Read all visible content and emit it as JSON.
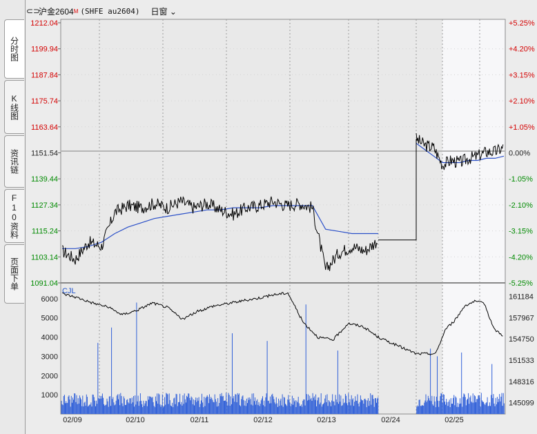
{
  "sidebar": {
    "tabs": [
      "分时图",
      "K线图",
      "资讯链",
      "F10资料",
      "页面下单"
    ]
  },
  "header": {
    "link_icon": "link-icon",
    "instrument": "沪金2604",
    "marker": "M",
    "code": "(SHFE au2604)",
    "window_label": "日窗"
  },
  "chart_data": [
    {
      "type": "line",
      "title": "",
      "prev_close": 1151.54,
      "y_ticks": [
        "1212.04",
        "1199.94",
        "1187.84",
        "1175.74",
        "1163.64",
        "1151.54",
        "1139.44",
        "1127.34",
        "1115.24",
        "1103.14",
        "1091.04"
      ],
      "pct_ticks": [
        "+5.25%",
        "+4.20%",
        "+3.15%",
        "+2.10%",
        "+1.05%",
        "0.00%",
        "-1.05%",
        "-2.10%",
        "-3.15%",
        "-4.20%",
        "-5.25%"
      ],
      "ylim": [
        1091.04,
        1212.04
      ],
      "x_labels": [
        "02/09",
        "02/10",
        "02/11",
        "02/12",
        "02/13",
        "02/24",
        "02/25"
      ],
      "series": [
        {
          "values": [
            1106,
            1102,
            1110,
            1108,
            1124,
            1127,
            1126,
            1128,
            1126,
            1129,
            1126,
            1128,
            1125,
            1123,
            1126,
            1127,
            1129,
            1127,
            1128,
            1126,
            1097,
            1105,
            1108,
            1106,
            1111,
            1158,
            1155,
            1154,
            1146,
            1148,
            1147,
            1149,
            1150,
            1152,
            1152,
            1154
          ]
        },
        {
          "values": [
            1107,
            1107,
            1108,
            1110,
            1114,
            1117,
            1119,
            1121,
            1122,
            1123,
            1124,
            1125,
            1125,
            1126,
            1126,
            1126,
            1127,
            1127,
            1127,
            1127,
            1116,
            1115,
            1114,
            1114,
            1114,
            1156,
            1153,
            1150,
            1147,
            1147,
            1147,
            1148,
            1148,
            1149,
            1149,
            1150
          ]
        }
      ],
      "gap_flat_value": 1111
    },
    {
      "type": "bar",
      "title": "",
      "ylabel": "CJL",
      "y_ticks": [
        "6000",
        "5000",
        "4000",
        "3000",
        "2000",
        "1000"
      ],
      "oi_ticks": [
        "161184",
        "157967",
        "154750",
        "151533",
        "148316",
        "145099"
      ],
      "volume_baseline": 1000,
      "volume_spikes": [
        3700,
        4500,
        5800,
        4200,
        3800,
        5700,
        3300,
        3400,
        3000,
        3200,
        2600
      ],
      "open_interest": [
        161600,
        161000,
        160200,
        159600,
        158400,
        159100,
        160200,
        159500,
        157700,
        158900,
        159700,
        160100,
        160500,
        160900,
        161400,
        161700,
        157300,
        155000,
        154600,
        157100,
        156600,
        155000,
        152500,
        152500,
        152500,
        156200,
        157600,
        159800,
        160400,
        160100,
        156200,
        155200
      ]
    }
  ]
}
